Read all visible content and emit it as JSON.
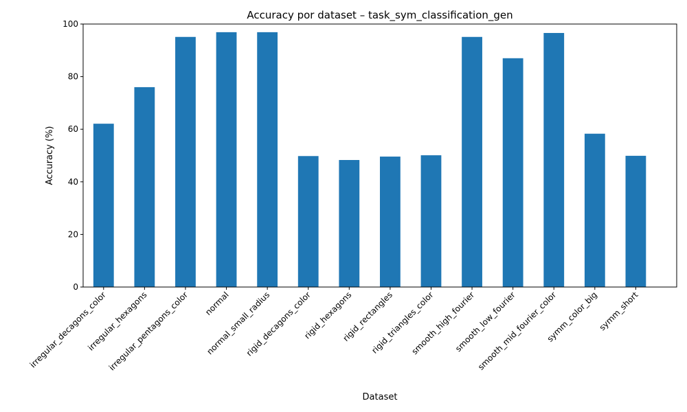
{
  "chart_data": {
    "type": "bar",
    "title": "Accuracy por dataset – task_sym_classification_gen",
    "xlabel": "Dataset",
    "ylabel": "Accuracy (%)",
    "ylim": [
      0,
      100
    ],
    "yticks": [
      0,
      20,
      40,
      60,
      80,
      100
    ],
    "grid": false,
    "bar_color": "#1f77b4",
    "categories": [
      "irregular_decagons_color",
      "irregular_hexagons",
      "irregular_pentagons_color",
      "normal",
      "normal_small_radius",
      "rigid_decagons_color",
      "rigid_hexagons",
      "rigid_rectangles",
      "rigid_triangles_color",
      "smooth_high_fourier",
      "smooth_low_fourier",
      "smooth_mid_fourier_color",
      "symm_color_big",
      "symm_short"
    ],
    "values": [
      62.1,
      76.0,
      95.1,
      96.9,
      96.9,
      49.8,
      48.3,
      49.6,
      50.1,
      95.1,
      87.0,
      96.6,
      58.3,
      49.9
    ]
  }
}
